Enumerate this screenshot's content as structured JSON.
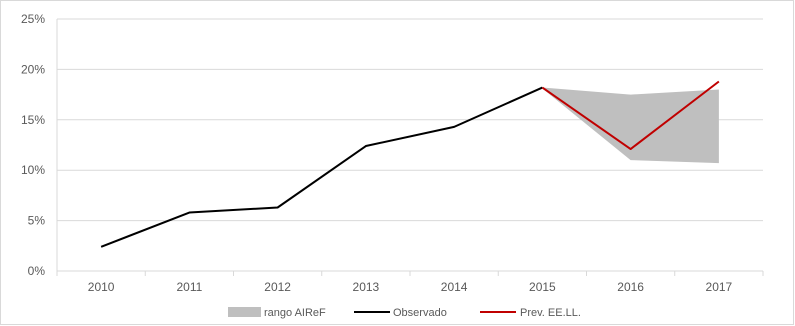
{
  "chart_data": {
    "type": "line",
    "categories": [
      "2010",
      "2011",
      "2012",
      "2013",
      "2014",
      "2015",
      "2016",
      "2017"
    ],
    "ylim": [
      0,
      25
    ],
    "yticks": [
      0,
      5,
      10,
      15,
      20,
      25
    ],
    "ytick_labels": [
      "0%",
      "5%",
      "10%",
      "15%",
      "20%",
      "25%"
    ],
    "grid": true,
    "legend_position": "bottom",
    "series": [
      {
        "name": "rango AIReF",
        "kind": "band",
        "color": "#bfbfbf",
        "x": [
          "2015",
          "2016",
          "2017"
        ],
        "low": [
          18.1,
          11.0,
          10.7
        ],
        "high": [
          18.2,
          17.5,
          18.0
        ]
      },
      {
        "name": "Observado",
        "kind": "line",
        "color": "#000000",
        "x": [
          "2010",
          "2011",
          "2012",
          "2013",
          "2014",
          "2015"
        ],
        "values": [
          2.4,
          5.8,
          6.3,
          12.4,
          14.3,
          18.2
        ]
      },
      {
        "name": "Prev. EE.LL.",
        "kind": "line",
        "color": "#c00000",
        "x": [
          "2015",
          "2016",
          "2017"
        ],
        "values": [
          18.2,
          12.1,
          18.8
        ]
      }
    ]
  }
}
